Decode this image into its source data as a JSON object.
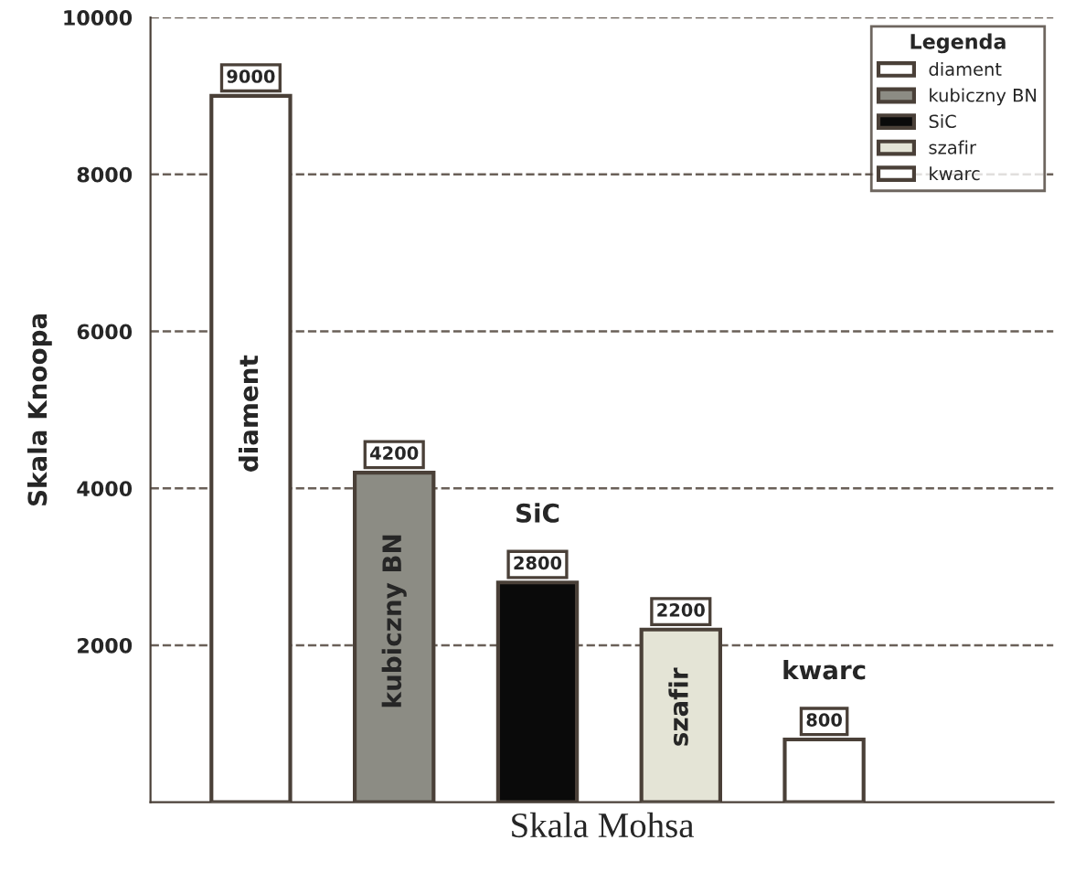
{
  "chart_data": {
    "type": "bar",
    "categories": [
      null,
      null,
      null,
      null,
      null
    ],
    "series": [
      {
        "name": "diament",
        "color": "#ffffff",
        "values": [
          9000,
          null,
          null,
          null,
          null
        ]
      },
      {
        "name": "kubiczny BN",
        "color": "#8c8c84",
        "values": [
          null,
          4200,
          null,
          null,
          null
        ]
      },
      {
        "name": "SiC",
        "color": "#0a0a0a",
        "values": [
          null,
          null,
          2800,
          null,
          null
        ]
      },
      {
        "name": "szafir",
        "color": "#e4e4d6",
        "values": [
          null,
          null,
          null,
          2200,
          null
        ]
      },
      {
        "name": "kwarc",
        "color": "#ffffff",
        "values": [
          null,
          null,
          null,
          null,
          800
        ]
      }
    ],
    "xlabel": "Skala Mohsa",
    "ylabel": "Skala Knoopa",
    "legend_title": "Legenda",
    "ylim": [
      0,
      10000
    ],
    "yticks": [
      2000,
      4000,
      6000,
      8000,
      10000
    ],
    "grid": "y",
    "legend": "top right",
    "data_labels": true,
    "stacked": true
  }
}
